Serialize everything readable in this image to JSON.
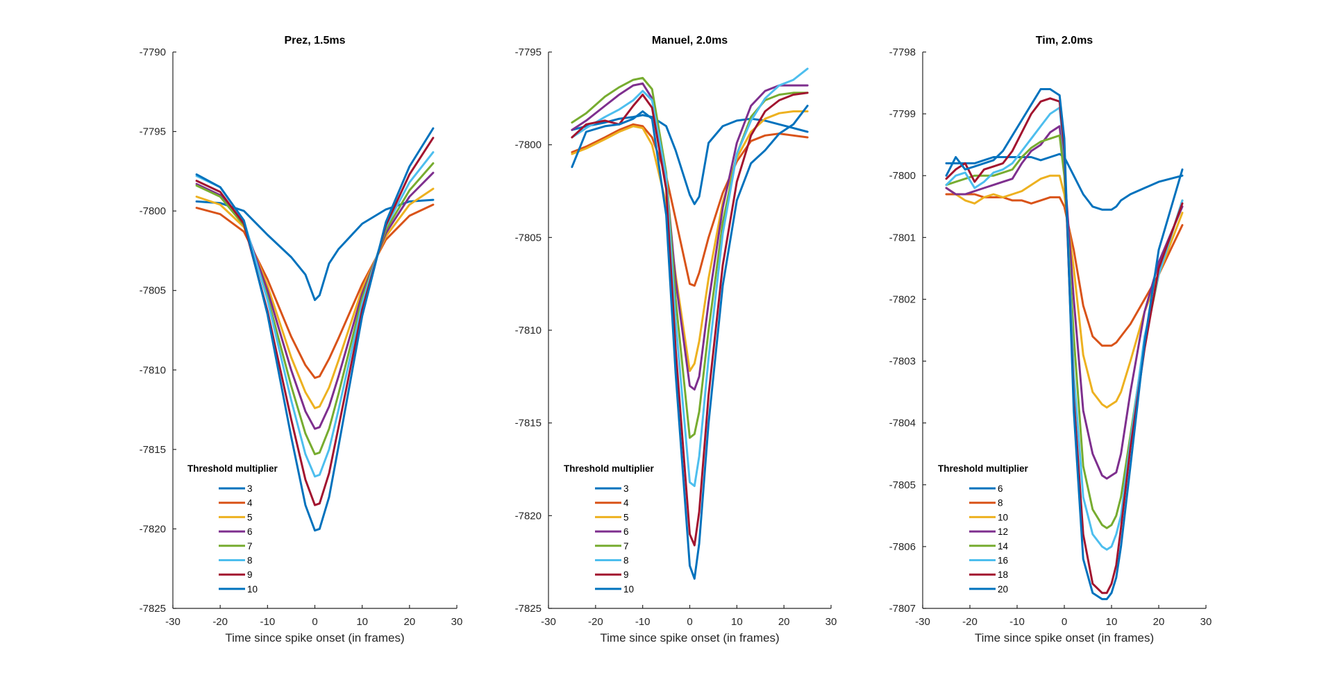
{
  "colors": {
    "c1": "#0072BD",
    "c2": "#D95319",
    "c3": "#EDB120",
    "c4": "#7E2F8E",
    "c5": "#77AC30",
    "c6": "#4DBEEE",
    "c7": "#A2142F",
    "c8": "#0072BD"
  },
  "chart_data": [
    {
      "type": "line",
      "title": "Prez, 1.5ms",
      "xlabel": "Time since spike onset (in frames)",
      "ylabel": "",
      "xlim": [
        -30,
        30
      ],
      "ylim": [
        -7825,
        -7790
      ],
      "xticks": [
        "-30",
        "-20",
        "-10",
        "0",
        "10",
        "20",
        "30"
      ],
      "yticks": [
        "-7790",
        "-7795",
        "-7800",
        "-7805",
        "-7810",
        "-7815",
        "-7820",
        "-7825"
      ],
      "legend_title": "Threshold multiplier",
      "legend_position": "lower-left",
      "x": [
        -25,
        -20,
        -15,
        -10,
        -5,
        -2,
        0,
        1,
        3,
        5,
        10,
        15,
        20,
        25
      ],
      "series": [
        {
          "name": "3",
          "values": [
            -7799.4,
            -7799.5,
            -7800.0,
            -7801.5,
            -7802.9,
            -7804.0,
            -7805.6,
            -7805.3,
            -7803.3,
            -7802.4,
            -7800.8,
            -7799.9,
            -7799.4,
            -7799.3
          ]
        },
        {
          "name": "4",
          "values": [
            -7799.8,
            -7800.2,
            -7801.3,
            -7804.3,
            -7807.9,
            -7809.7,
            -7810.5,
            -7810.4,
            -7809.3,
            -7808.0,
            -7804.6,
            -7801.8,
            -7800.3,
            -7799.6
          ]
        },
        {
          "name": "5",
          "values": [
            -7799.1,
            -7799.6,
            -7801.0,
            -7804.7,
            -7809.2,
            -7811.4,
            -7812.4,
            -7812.3,
            -7811.1,
            -7809.4,
            -7804.9,
            -7801.6,
            -7799.6,
            -7798.6
          ]
        },
        {
          "name": "6",
          "values": [
            -7798.3,
            -7799.0,
            -7800.8,
            -7805.0,
            -7810.0,
            -7812.6,
            -7813.7,
            -7813.6,
            -7812.3,
            -7810.4,
            -7805.2,
            -7801.4,
            -7799.1,
            -7797.6
          ]
        },
        {
          "name": "7",
          "values": [
            -7798.4,
            -7799.1,
            -7800.9,
            -7805.4,
            -7811.0,
            -7814.0,
            -7815.3,
            -7815.2,
            -7813.7,
            -7811.5,
            -7805.5,
            -7801.2,
            -7798.7,
            -7797.0
          ]
        },
        {
          "name": "8",
          "values": [
            -7797.8,
            -7798.5,
            -7800.6,
            -7805.6,
            -7811.9,
            -7815.3,
            -7816.7,
            -7816.6,
            -7815.0,
            -7812.5,
            -7805.8,
            -7801.0,
            -7798.2,
            -7796.3
          ]
        },
        {
          "name": "9",
          "values": [
            -7798.1,
            -7798.8,
            -7800.8,
            -7806.3,
            -7813.1,
            -7816.9,
            -7818.5,
            -7818.4,
            -7816.5,
            -7813.6,
            -7806.2,
            -7800.9,
            -7797.7,
            -7795.4
          ]
        },
        {
          "name": "10",
          "values": [
            -7797.7,
            -7798.5,
            -7800.6,
            -7806.5,
            -7814.2,
            -7818.5,
            -7820.1,
            -7820.0,
            -7818.0,
            -7814.8,
            -7806.6,
            -7800.7,
            -7797.2,
            -7794.8
          ]
        }
      ]
    },
    {
      "type": "line",
      "title": "Manuel, 2.0ms",
      "xlabel": "Time since spike onset (in frames)",
      "ylabel": "",
      "xlim": [
        -30,
        30
      ],
      "ylim": [
        -7825,
        -7795
      ],
      "xticks": [
        "-30",
        "-20",
        "-10",
        "0",
        "10",
        "20",
        "30"
      ],
      "yticks": [
        "-7795",
        "-7800",
        "-7805",
        "-7810",
        "-7815",
        "-7820",
        "-7825"
      ],
      "legend_title": "Threshold multiplier",
      "legend_position": "lower-left",
      "x": [
        -25,
        -22,
        -18,
        -15,
        -12,
        -10,
        -8,
        -5,
        -3,
        0,
        1,
        2,
        4,
        7,
        10,
        13,
        16,
        19,
        22,
        25
      ],
      "series": [
        {
          "name": "3",
          "values": [
            -7799.2,
            -7799.0,
            -7798.8,
            -7798.6,
            -7798.5,
            -7798.4,
            -7798.5,
            -7799.0,
            -7800.3,
            -7802.7,
            -7803.2,
            -7802.8,
            -7799.9,
            -7799.0,
            -7798.7,
            -7798.6,
            -7798.7,
            -7798.9,
            -7799.1,
            -7799.3
          ]
        },
        {
          "name": "4",
          "values": [
            -7800.4,
            -7800.1,
            -7799.6,
            -7799.2,
            -7798.9,
            -7799.0,
            -7799.6,
            -7801.7,
            -7804.0,
            -7807.5,
            -7807.6,
            -7806.9,
            -7805.0,
            -7802.6,
            -7800.9,
            -7799.8,
            -7799.5,
            -7799.4,
            -7799.5,
            -7799.6
          ]
        },
        {
          "name": "5",
          "values": [
            -7800.5,
            -7800.2,
            -7799.7,
            -7799.3,
            -7799.0,
            -7799.1,
            -7800.0,
            -7803.2,
            -7807.0,
            -7812.2,
            -7811.8,
            -7810.6,
            -7807.2,
            -7803.1,
            -7800.7,
            -7799.3,
            -7798.6,
            -7798.3,
            -7798.2,
            -7798.2
          ]
        },
        {
          "name": "6",
          "values": [
            -7799.2,
            -7798.7,
            -7797.9,
            -7797.3,
            -7796.8,
            -7796.7,
            -7797.5,
            -7801.8,
            -7807.3,
            -7813.0,
            -7813.2,
            -7812.5,
            -7808.5,
            -7803.4,
            -7799.9,
            -7797.9,
            -7797.1,
            -7796.8,
            -7796.8,
            -7796.8
          ]
        },
        {
          "name": "7",
          "values": [
            -7798.8,
            -7798.3,
            -7797.4,
            -7796.9,
            -7796.5,
            -7796.4,
            -7797.0,
            -7801.5,
            -7808.3,
            -7815.8,
            -7815.6,
            -7814.4,
            -7810.0,
            -7804.2,
            -7800.5,
            -7798.5,
            -7797.6,
            -7797.3,
            -7797.2,
            -7797.2
          ]
        },
        {
          "name": "8",
          "values": [
            -7799.6,
            -7799.1,
            -7798.5,
            -7798.1,
            -7797.6,
            -7797.1,
            -7797.6,
            -7801.7,
            -7809.5,
            -7818.2,
            -7818.4,
            -7816.8,
            -7811.5,
            -7804.8,
            -7800.5,
            -7798.7,
            -7797.5,
            -7796.8,
            -7796.5,
            -7795.9
          ]
        },
        {
          "name": "9",
          "values": [
            -7799.6,
            -7798.9,
            -7798.7,
            -7798.9,
            -7797.9,
            -7797.3,
            -7798.0,
            -7802.4,
            -7811.0,
            -7821.0,
            -7821.6,
            -7819.8,
            -7813.5,
            -7806.5,
            -7802.0,
            -7799.5,
            -7798.2,
            -7797.6,
            -7797.3,
            -7797.2
          ]
        },
        {
          "name": "10",
          "values": [
            -7801.2,
            -7799.3,
            -7799.0,
            -7798.9,
            -7798.6,
            -7798.2,
            -7798.6,
            -7803.8,
            -7812.3,
            -7822.7,
            -7823.4,
            -7821.5,
            -7815.0,
            -7807.6,
            -7803.0,
            -7801.0,
            -7800.3,
            -7799.4,
            -7798.9,
            -7797.9
          ]
        }
      ]
    },
    {
      "type": "line",
      "title": "Tim, 2.0ms",
      "xlabel": "Time since spike onset (in frames)",
      "ylabel": "",
      "xlim": [
        -30,
        30
      ],
      "ylim": [
        -7807,
        -7798
      ],
      "xticks": [
        "-30",
        "-20",
        "-10",
        "0",
        "10",
        "20",
        "30"
      ],
      "yticks": [
        "-7798",
        "-7799",
        "-7800",
        "-7801",
        "-7802",
        "-7803",
        "-7804",
        "-7805",
        "-7806",
        "-7807"
      ],
      "legend_title": "Threshold multiplier",
      "legend_position": "lower-left",
      "x": [
        -25,
        -23,
        -21,
        -19,
        -17,
        -15,
        -13,
        -11,
        -9,
        -7,
        -5,
        -3,
        -1,
        0,
        2,
        4,
        6,
        8,
        9,
        10,
        11,
        12,
        14,
        17,
        20,
        25
      ],
      "series": [
        {
          "name": "6",
          "values": [
            -7799.8,
            -7799.8,
            -7799.8,
            -7799.8,
            -7799.75,
            -7799.7,
            -7799.7,
            -7799.7,
            -7799.7,
            -7799.7,
            -7799.75,
            -7799.7,
            -7799.65,
            -7799.7,
            -7800.0,
            -7800.3,
            -7800.5,
            -7800.55,
            -7800.55,
            -7800.55,
            -7800.5,
            -7800.4,
            -7800.3,
            -7800.2,
            -7800.1,
            -7800.0
          ]
        },
        {
          "name": "8",
          "values": [
            -7800.3,
            -7800.3,
            -7800.3,
            -7800.3,
            -7800.35,
            -7800.35,
            -7800.35,
            -7800.4,
            -7800.4,
            -7800.45,
            -7800.4,
            -7800.35,
            -7800.35,
            -7800.5,
            -7801.2,
            -7802.1,
            -7802.6,
            -7802.75,
            -7802.75,
            -7802.75,
            -7802.7,
            -7802.6,
            -7802.4,
            -7802.0,
            -7801.6,
            -7800.8
          ]
        },
        {
          "name": "10",
          "values": [
            -7800.2,
            -7800.3,
            -7800.4,
            -7800.45,
            -7800.35,
            -7800.3,
            -7800.35,
            -7800.3,
            -7800.25,
            -7800.15,
            -7800.05,
            -7800.0,
            -7800.0,
            -7800.3,
            -7801.5,
            -7802.9,
            -7803.5,
            -7803.7,
            -7803.75,
            -7803.7,
            -7803.65,
            -7803.5,
            -7803.0,
            -7802.2,
            -7801.6,
            -7800.6
          ]
        },
        {
          "name": "12",
          "values": [
            -7800.2,
            -7800.3,
            -7800.3,
            -7800.25,
            -7800.2,
            -7800.15,
            -7800.1,
            -7800.05,
            -7799.8,
            -7799.6,
            -7799.5,
            -7799.3,
            -7799.2,
            -7799.9,
            -7802.0,
            -7803.8,
            -7804.5,
            -7804.85,
            -7804.9,
            -7804.85,
            -7804.8,
            -7804.5,
            -7803.5,
            -7802.2,
            -7801.4,
            -7800.5
          ]
        },
        {
          "name": "14",
          "values": [
            -7800.15,
            -7800.1,
            -7800.05,
            -7800.0,
            -7800.0,
            -7800.0,
            -7799.95,
            -7799.9,
            -7799.7,
            -7799.55,
            -7799.45,
            -7799.4,
            -7799.35,
            -7800.0,
            -7802.6,
            -7804.7,
            -7805.4,
            -7805.65,
            -7805.7,
            -7805.65,
            -7805.5,
            -7805.2,
            -7804.2,
            -7802.7,
            -7801.6,
            -7800.4
          ]
        },
        {
          "name": "16",
          "values": [
            -7800.15,
            -7800.0,
            -7799.95,
            -7800.2,
            -7800.1,
            -7799.95,
            -7799.9,
            -7799.8,
            -7799.6,
            -7799.4,
            -7799.2,
            -7799.0,
            -7798.9,
            -7799.7,
            -7803.2,
            -7805.2,
            -7805.8,
            -7806.0,
            -7806.05,
            -7806.0,
            -7805.8,
            -7805.5,
            -7804.3,
            -7802.6,
            -7801.6,
            -7800.4
          ]
        },
        {
          "name": "18",
          "values": [
            -7800.05,
            -7799.9,
            -7799.8,
            -7800.1,
            -7799.9,
            -7799.85,
            -7799.8,
            -7799.6,
            -7799.3,
            -7799.0,
            -7798.8,
            -7798.75,
            -7798.8,
            -7799.6,
            -7803.6,
            -7805.8,
            -7806.6,
            -7806.75,
            -7806.75,
            -7806.6,
            -7806.3,
            -7805.7,
            -7804.4,
            -7802.8,
            -7801.5,
            -7800.45
          ]
        },
        {
          "name": "20",
          "values": [
            -7800.0,
            -7799.7,
            -7799.9,
            -7799.85,
            -7799.8,
            -7799.75,
            -7799.6,
            -7799.35,
            -7799.1,
            -7798.85,
            -7798.6,
            -7798.6,
            -7798.7,
            -7799.4,
            -7803.8,
            -7806.2,
            -7806.75,
            -7806.85,
            -7806.85,
            -7806.75,
            -7806.5,
            -7806.0,
            -7804.7,
            -7802.7,
            -7801.2,
            -7799.9
          ]
        }
      ]
    }
  ]
}
